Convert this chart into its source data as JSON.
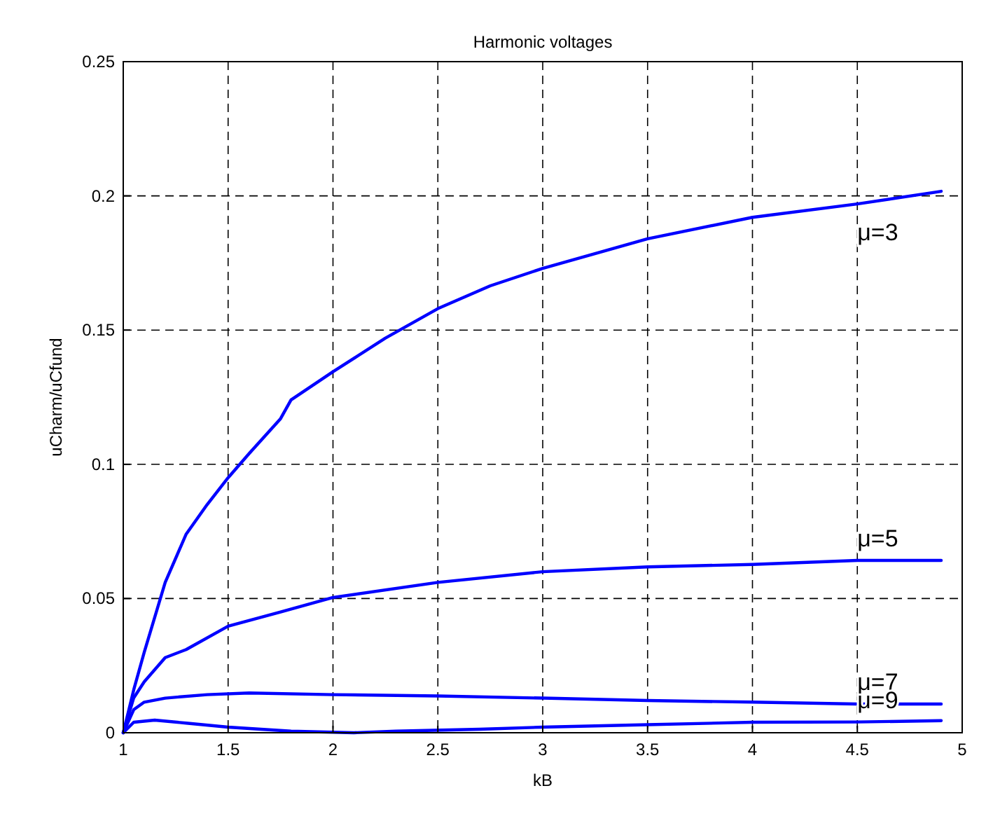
{
  "chart_data": {
    "type": "line",
    "title": "Harmonic voltages",
    "xlabel": "kB",
    "ylabel": "uCharm/uCfund",
    "xlim": [
      1,
      5
    ],
    "xticks": [
      1,
      1.5,
      2,
      2.5,
      3,
      3.5,
      4,
      4.5,
      5
    ],
    "ylim": [
      0,
      0.25
    ],
    "yticks": [
      0,
      0.05,
      0.1,
      0.15,
      0.2,
      0.25
    ],
    "grid": true,
    "line_style": "solid",
    "series": [
      {
        "name": "μ=3",
        "color": "#0000ff",
        "x": [
          1,
          1.05,
          1.1,
          1.2,
          1.3,
          1.4,
          1.5,
          1.6,
          1.75,
          1.8,
          2,
          2.25,
          2.5,
          2.75,
          3,
          3.5,
          4,
          4.5,
          4.9
        ],
        "values": [
          0,
          0.016,
          0.03,
          0.056,
          0.074,
          0.085,
          0.095,
          0.104,
          0.117,
          0.124,
          0.1345,
          0.147,
          0.158,
          0.1665,
          0.173,
          0.184,
          0.192,
          0.197,
          0.2017
        ]
      },
      {
        "name": "μ=5",
        "color": "#0000ff",
        "x": [
          1,
          1.05,
          1.1,
          1.2,
          1.3,
          1.5,
          1.75,
          2,
          2.5,
          3,
          3.5,
          4,
          4.5,
          4.9
        ],
        "values": [
          0,
          0.013,
          0.019,
          0.028,
          0.031,
          0.0397,
          0.045,
          0.0504,
          0.056,
          0.06,
          0.0618,
          0.0627,
          0.0642,
          0.0642
        ]
      },
      {
        "name": "μ=7",
        "color": "#0000ff",
        "x": [
          1,
          1.05,
          1.1,
          1.2,
          1.4,
          1.6,
          2,
          2.5,
          3,
          3.5,
          4,
          4.5,
          4.9
        ],
        "values": [
          0,
          0.0086,
          0.0114,
          0.0129,
          0.0142,
          0.0148,
          0.0142,
          0.0137,
          0.0129,
          0.012,
          0.0114,
          0.0107,
          0.0107
        ]
      },
      {
        "name": "μ=9",
        "color": "#0000ff",
        "x": [
          1,
          1.05,
          1.15,
          1.3,
          1.5,
          1.8,
          2.1,
          2.3,
          2.7,
          3,
          3.5,
          4,
          4.5,
          4.9
        ],
        "values": [
          0,
          0.0039,
          0.0047,
          0.0036,
          0.0021,
          0.0006,
          0,
          0.0006,
          0.0013,
          0.0021,
          0.003,
          0.0039,
          0.004,
          0.0045
        ]
      }
    ]
  }
}
